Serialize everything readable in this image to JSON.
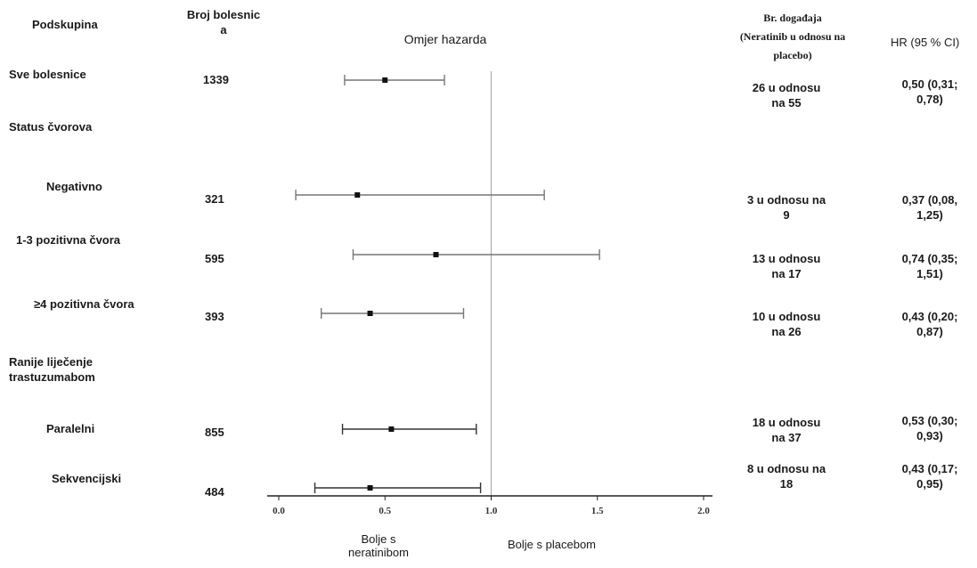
{
  "headers": {
    "subgroup": "Podskupina",
    "patients": "Broj bolesnic\na",
    "hazard": "Omjer hazarda",
    "events": "Br. događaja\n(Neratinib u odnosu na\nplacebo)",
    "hr": "HR (95 % CI)"
  },
  "rows": [
    {
      "label": "Sve bolesnice",
      "n": "1339",
      "events": "26 u odnosu\nna 55",
      "hr": "0,50 (0,31;\n0,78)"
    },
    {
      "label": "Status čvorova",
      "n": "",
      "events": "",
      "hr": ""
    },
    {
      "label": "Negativno",
      "n": "321",
      "events": "3 u odnosu na\n9",
      "hr": "0,37 (0,08,\n1,25)"
    },
    {
      "label": "1-3 pozitivna čvora",
      "n": "595",
      "events": "13 u odnosu\nna 17",
      "hr": "0,74 (0,35;\n1,51)"
    },
    {
      "label": "≥4 pozitivna čvora",
      "n": "393",
      "events": "10 u odnosu\nna 26",
      "hr": "0,43 (0,20;\n0,87)"
    },
    {
      "label": "Ranije liječenje\ntrastuzumabom",
      "n": "",
      "events": "",
      "hr": ""
    },
    {
      "label": "Paralelni",
      "n": "855",
      "events": "18 u odnosu\nna 37",
      "hr": "0,53 (0,30;\n0,93)"
    },
    {
      "label": "Sekvencijski",
      "n": "484",
      "events": "8 u odnosu na\n18",
      "hr": "0,43 (0,17;\n0,95)"
    }
  ],
  "footer": {
    "favors_left": "Bolje s\nneratinibom",
    "favors_right": "Bolje s placebom"
  },
  "colors": {
    "ci_line": "#777777",
    "ci_line_dark": "#333333",
    "point": "#111111",
    "ref_line": "#aaaaaa",
    "axis": "#222222"
  },
  "chart_data": {
    "type": "forest",
    "title": "Omjer hazarda",
    "xlim": [
      0.0,
      2.0
    ],
    "x_ticks": [
      "0.0",
      "0.5",
      "1.0",
      "1.5",
      "2.0"
    ],
    "reference_line": 1.0,
    "series": [
      {
        "subgroup": "Sve bolesnice",
        "hr": 0.5,
        "lower": 0.31,
        "upper": 0.78
      },
      {
        "subgroup": "Negativno",
        "hr": 0.37,
        "lower": 0.08,
        "upper": 1.25
      },
      {
        "subgroup": "1-3 pozitivna čvora",
        "hr": 0.74,
        "lower": 0.35,
        "upper": 1.51
      },
      {
        "subgroup": "≥4 pozitivna čvora",
        "hr": 0.43,
        "lower": 0.2,
        "upper": 0.87
      },
      {
        "subgroup": "Paralelni",
        "hr": 0.53,
        "lower": 0.3,
        "upper": 0.93
      },
      {
        "subgroup": "Sekvencijski",
        "hr": 0.43,
        "lower": 0.17,
        "upper": 0.95
      }
    ]
  }
}
